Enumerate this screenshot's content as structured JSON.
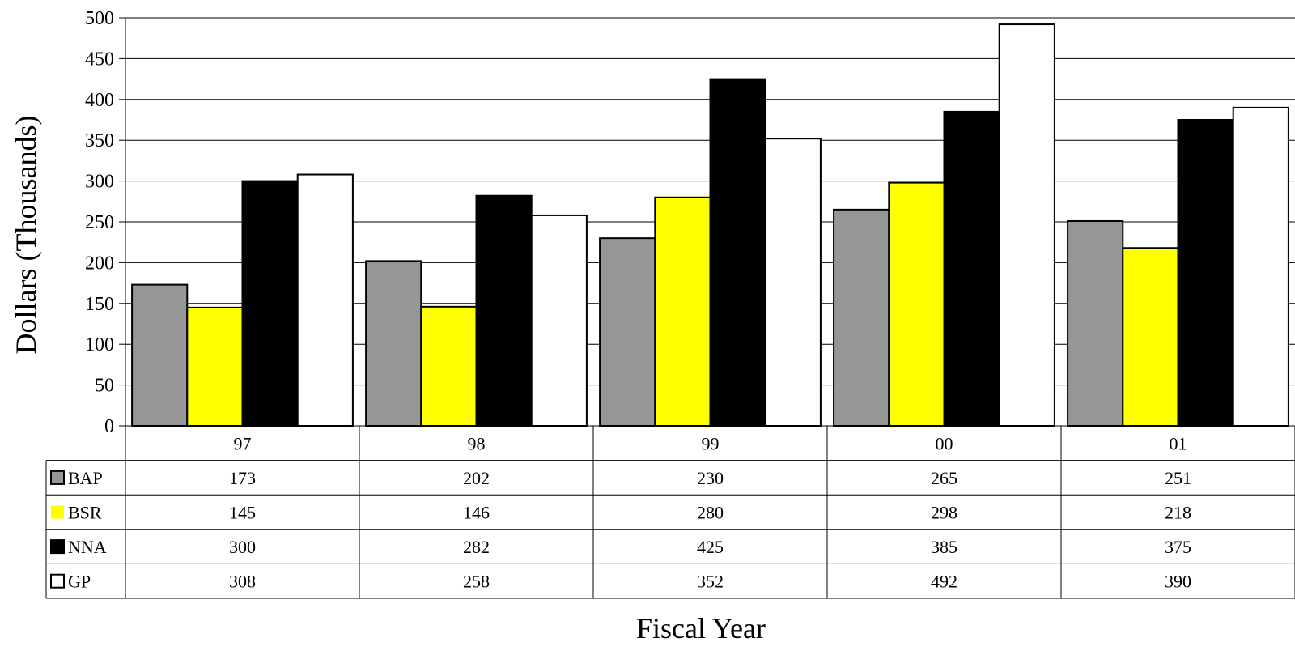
{
  "chart_data": {
    "type": "bar",
    "title": "",
    "xlabel": "Fiscal Year",
    "ylabel": "Dollars (Thousands)",
    "ylim": [
      0,
      500
    ],
    "yticks": [
      0,
      50,
      100,
      150,
      200,
      250,
      300,
      350,
      400,
      450,
      500
    ],
    "grid": true,
    "legend": "data-table",
    "categories": [
      "97",
      "98",
      "99",
      "00",
      "01"
    ],
    "series": [
      {
        "name": "BAP",
        "color": "#969696",
        "values": [
          173,
          202,
          230,
          265,
          251
        ]
      },
      {
        "name": "BSR",
        "color": "#ffff00",
        "values": [
          145,
          146,
          280,
          298,
          218
        ]
      },
      {
        "name": "NNA",
        "color": "#000000",
        "values": [
          300,
          282,
          425,
          385,
          375
        ]
      },
      {
        "name": "GP",
        "color": "#ffffff",
        "values": [
          308,
          258,
          352,
          492,
          390
        ]
      }
    ]
  }
}
